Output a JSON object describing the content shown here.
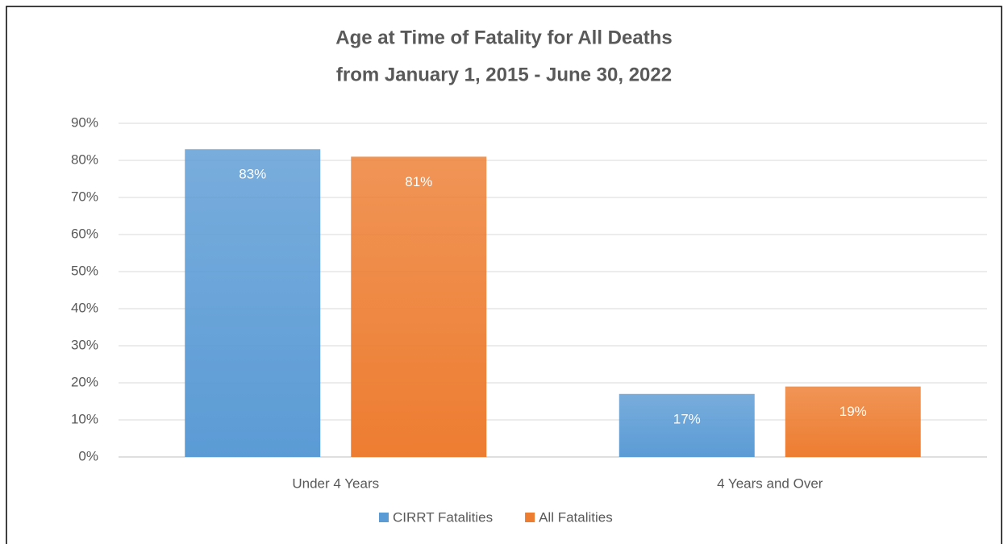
{
  "chart_data": {
    "type": "bar",
    "title": [
      "Age at Time of Fatality for All Deaths",
      "from January 1, 2015 - June 30, 2022"
    ],
    "categories": [
      "Under 4 Years",
      "4 Years and Over"
    ],
    "series": [
      {
        "name": "CIRRT Fatalities",
        "color": "#5b9bd5",
        "values": [
          83,
          17
        ],
        "value_labels": [
          "83%",
          "17%"
        ]
      },
      {
        "name": "All Fatalities",
        "color": "#ed7d31",
        "values": [
          81,
          19
        ],
        "value_labels": [
          "81%",
          "19%"
        ]
      }
    ],
    "ylim": [
      0,
      90
    ],
    "yticks": [
      {
        "value": 0,
        "label": "0%"
      },
      {
        "value": 10,
        "label": "10%"
      },
      {
        "value": 20,
        "label": "20%"
      },
      {
        "value": 30,
        "label": "30%"
      },
      {
        "value": 40,
        "label": "40%"
      },
      {
        "value": 50,
        "label": "50%"
      },
      {
        "value": 60,
        "label": "60%"
      },
      {
        "value": 70,
        "label": "70%"
      },
      {
        "value": 80,
        "label": "80%"
      },
      {
        "value": 90,
        "label": "90%"
      }
    ],
    "grid": true,
    "legend": "bottom"
  }
}
